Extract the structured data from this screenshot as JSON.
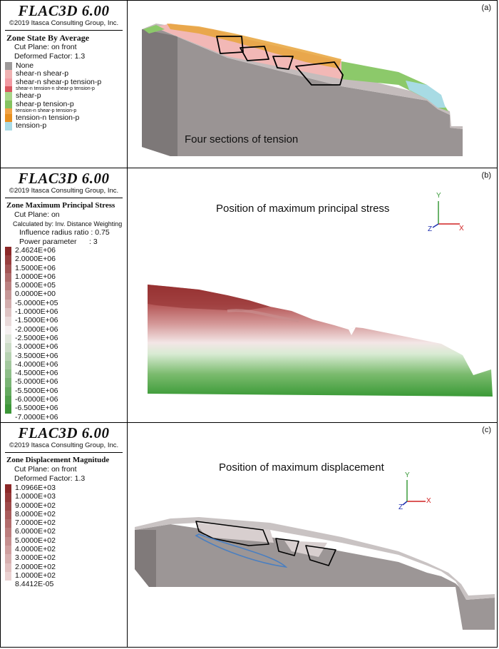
{
  "panels": [
    {
      "id": "a",
      "label": "(a)",
      "title": "FLAC3D 6.00",
      "copyright": "©2019 Itasca Consulting Group, Inc.",
      "legend_title": "Zone State By Average",
      "legend_lines": [
        "Cut Plane: on front",
        "Deformed Factor: 1.3"
      ],
      "states": [
        {
          "label": "None",
          "color": "#9e9a9a",
          "tiny": false
        },
        {
          "label": "shear-n shear-p",
          "color": "#f0b2b2",
          "tiny": false
        },
        {
          "label": "shear-n shear-p tension-p",
          "color": "#f29aa3",
          "tiny": false
        },
        {
          "label": "shear-n tension-n shear-p tension-p",
          "color": "#d9575f",
          "tiny": true
        },
        {
          "label": "shear-p",
          "color": "#a9d68a",
          "tiny": false
        },
        {
          "label": "shear-p tension-p",
          "color": "#85c25f",
          "tiny": false
        },
        {
          "label": "tension-n shear-p tension-p",
          "color": "#f2a447",
          "tiny": true
        },
        {
          "label": "tension-n tension-p",
          "color": "#e8901f",
          "tiny": false
        },
        {
          "label": "tension-p",
          "color": "#a9dbe6",
          "tiny": false
        }
      ],
      "caption": "Four sections of tension"
    },
    {
      "id": "b",
      "label": "(b)",
      "title": "FLAC3D 6.00",
      "copyright": "©2019 Itasca Consulting Group, Inc.",
      "legend_title": "Zone Maximum Principal Stress",
      "legend_lines": [
        "Cut Plane: on"
      ],
      "legend_small": "Calculated by: Inv. Distance Weighting",
      "legend_lines2": [
        "Influence radius ratio : 0.75",
        "Power parameter      : 3"
      ],
      "ticks": [
        "2.4624E+06",
        "2.0000E+06",
        "1.5000E+06",
        "1.0000E+06",
        "5.0000E+05",
        "0.0000E+00",
        "-5.0000E+05",
        "-1.0000E+06",
        "-1.5000E+06",
        "-2.0000E+06",
        "-2.5000E+06",
        "-3.0000E+06",
        "-3.5000E+06",
        "-4.0000E+06",
        "-4.5000E+06",
        "-5.0000E+06",
        "-5.5000E+06",
        "-6.0000E+06",
        "-6.5000E+06",
        "-7.0000E+06"
      ],
      "caption": "Position of maximum principal stress",
      "axes": {
        "x": "X",
        "y": "Y",
        "z": "Z"
      }
    },
    {
      "id": "c",
      "label": "(c)",
      "title": "FLAC3D 6.00",
      "copyright": "©2019 Itasca Consulting Group, Inc.",
      "legend_title": "Zone Displacement Magnitude",
      "legend_lines": [
        "Cut Plane: on front",
        "Deformed Factor: 1.3"
      ],
      "ticks": [
        "1.0966E+03",
        "1.0000E+03",
        "9.0000E+02",
        "8.0000E+02",
        "7.0000E+02",
        "6.0000E+02",
        "5.0000E+02",
        "4.0000E+02",
        "3.0000E+02",
        "2.0000E+02",
        "1.0000E+02",
        "8.4412E-05"
      ],
      "caption": "Position of maximum displacement",
      "axes": {
        "x": "X",
        "y": "Y",
        "z": "Z"
      }
    }
  ]
}
